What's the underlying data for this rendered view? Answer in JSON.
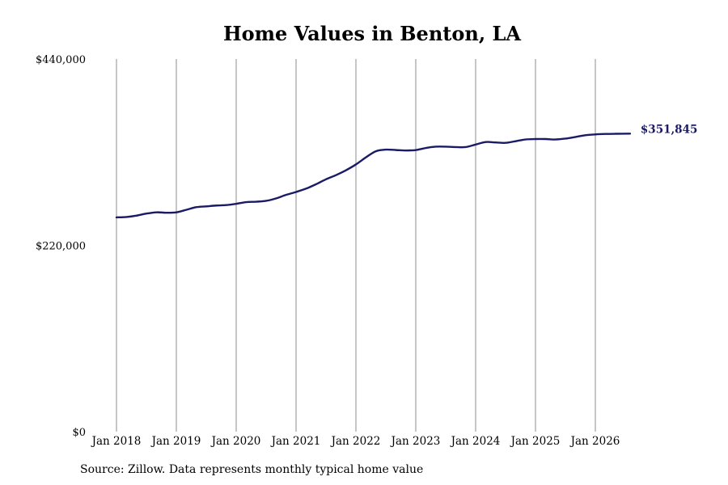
{
  "chart_data": {
    "type": "line",
    "title": "Home Values in Benton, LA",
    "source": "Source: Zillow. Data represents monthly typical home value",
    "ylim": [
      0,
      440000
    ],
    "y_ticks": [
      {
        "value": 0,
        "label": "$0"
      },
      {
        "value": 220000,
        "label": "$220,000"
      },
      {
        "value": 440000,
        "label": "$440,000"
      }
    ],
    "x_ticks": [
      {
        "value": 2018,
        "label": "Jan 2018"
      },
      {
        "value": 2019,
        "label": "Jan 2019"
      },
      {
        "value": 2020,
        "label": "Jan 2020"
      },
      {
        "value": 2021,
        "label": "Jan 2021"
      },
      {
        "value": 2022,
        "label": "Jan 2022"
      },
      {
        "value": 2023,
        "label": "Jan 2023"
      },
      {
        "value": 2024,
        "label": "Jan 2024"
      },
      {
        "value": 2025,
        "label": "Jan 2025"
      },
      {
        "value": 2026,
        "label": "Jan 2026"
      }
    ],
    "xlim": [
      2018,
      2026.58
    ],
    "grid": {
      "vertical": true,
      "horizontal": false
    },
    "series_color": "#1a1a66",
    "end_label": "$351,845",
    "series": [
      {
        "x": [
          2018.0,
          2018.17,
          2018.33,
          2018.5,
          2018.67,
          2018.83,
          2019.0,
          2019.17,
          2019.33,
          2019.5,
          2019.67,
          2019.83,
          2020.0,
          2020.17,
          2020.33,
          2020.5,
          2020.67,
          2020.83,
          2021.0,
          2021.17,
          2021.33,
          2021.5,
          2021.67,
          2021.83,
          2022.0,
          2022.17,
          2022.33,
          2022.5,
          2022.67,
          2022.83,
          2023.0,
          2023.17,
          2023.33,
          2023.5,
          2023.67,
          2023.83,
          2024.0,
          2024.17,
          2024.33,
          2024.5,
          2024.67,
          2024.83,
          2025.0,
          2025.17,
          2025.33,
          2025.5,
          2025.67,
          2025.83,
          2026.0,
          2026.17,
          2026.33,
          2026.58
        ],
        "y": [
          253000,
          253500,
          255000,
          257500,
          259000,
          258500,
          259000,
          262000,
          265000,
          266000,
          267000,
          267500,
          269000,
          271000,
          271500,
          272500,
          275500,
          279500,
          283000,
          287000,
          292000,
          298000,
          303000,
          308500,
          315500,
          324000,
          331000,
          333000,
          332500,
          332000,
          332500,
          335000,
          336500,
          336500,
          336000,
          336000,
          339000,
          342000,
          341500,
          341000,
          343000,
          345000,
          345500,
          345500,
          345000,
          346000,
          348000,
          350000,
          351000,
          351500,
          351700,
          351845
        ]
      }
    ]
  }
}
